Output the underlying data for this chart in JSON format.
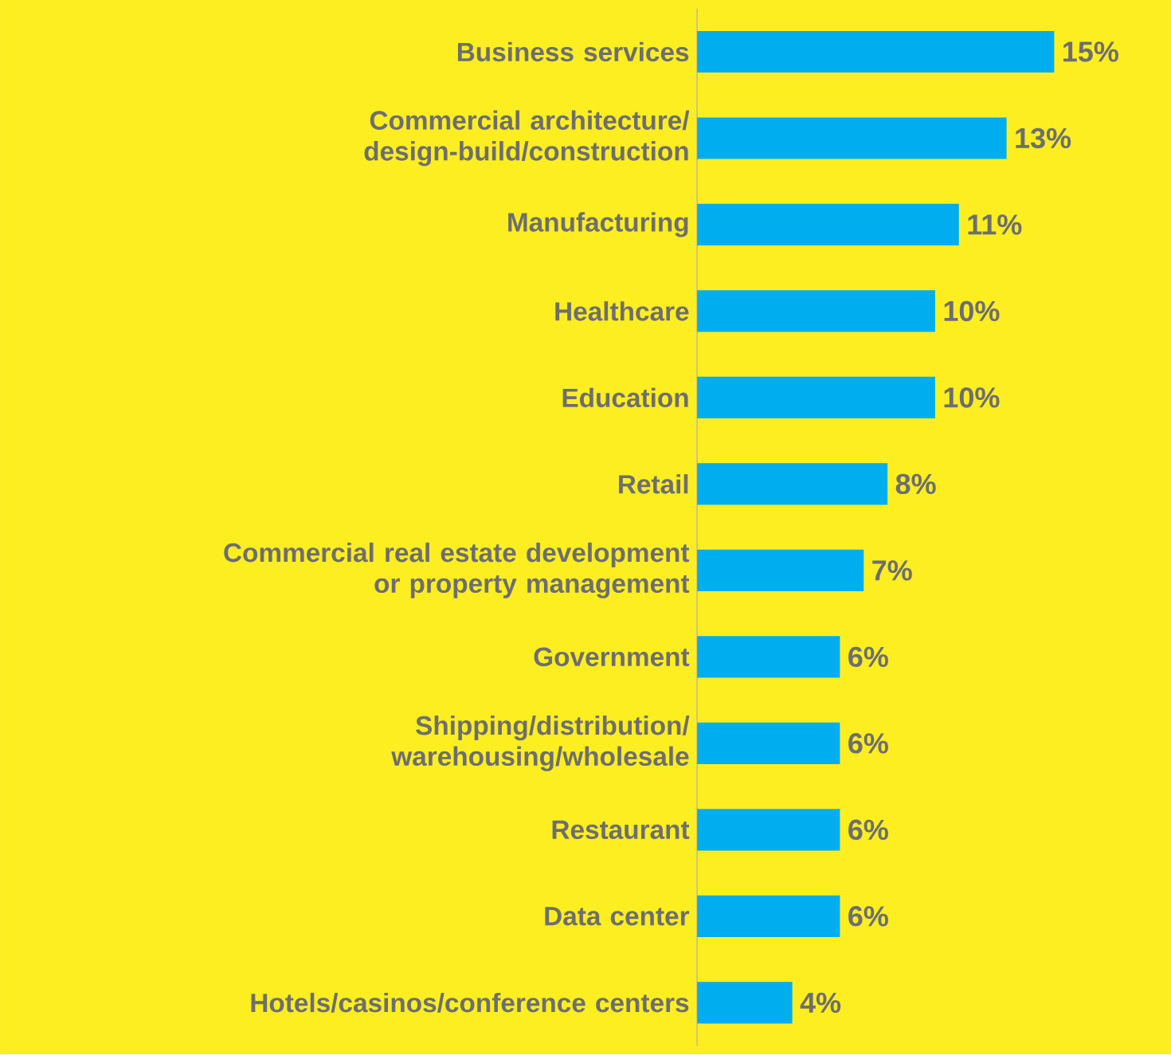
{
  "chart_data": {
    "type": "bar",
    "orientation": "horizontal",
    "categories": [
      "Business services",
      "Commercial architecture/ design-build/construction",
      "Manufacturing",
      "Healthcare",
      "Education",
      "Retail",
      "Commercial real estate development or property management",
      "Government",
      "Shipping/distribution/ warehousing/wholesale",
      "Restaurant",
      "Data center",
      "Hotels/casinos/conference centers"
    ],
    "values": [
      15,
      13,
      11,
      10,
      10,
      8,
      7,
      6,
      6,
      6,
      6,
      4
    ],
    "value_labels": [
      "15%",
      "13%",
      "11%",
      "10%",
      "10%",
      "8%",
      "7%",
      "6%",
      "6%",
      "6%",
      "6%",
      "4%"
    ],
    "color": "#00aeef"
  }
}
